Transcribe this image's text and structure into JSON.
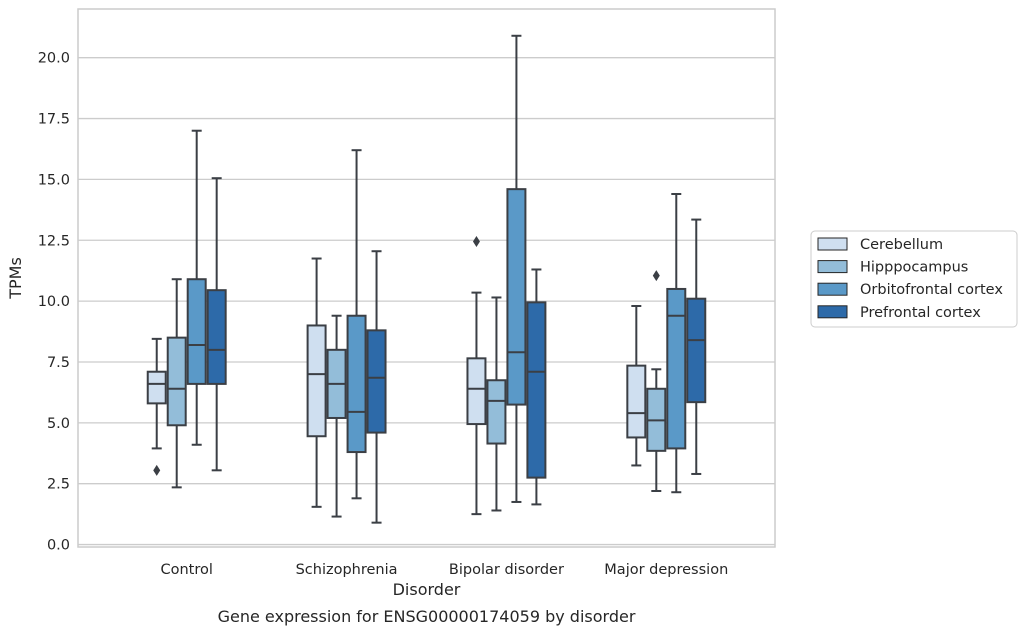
{
  "caption": "Gene expression for ENSG00000174059 by disorder",
  "chart_data": {
    "type": "box",
    "xlabel": "Disorder",
    "ylabel": "TPMs",
    "ylim": [
      -0.1,
      22.0
    ],
    "yticks": [
      0.0,
      2.5,
      5.0,
      7.5,
      10.0,
      12.5,
      15.0,
      17.5,
      20.0
    ],
    "ytick_labels": [
      "0.0",
      "2.5",
      "5.0",
      "7.5",
      "10.0",
      "12.5",
      "15.0",
      "17.5",
      "20.0"
    ],
    "grid": "horizontal",
    "legend_position": "right",
    "categories": [
      "Control",
      "Schizophrenia",
      "Bipolar disorder",
      "Major depression"
    ],
    "series": [
      {
        "name": "Cerebellum",
        "color": "#cfdff0",
        "boxes": [
          {
            "whisker_low": 3.95,
            "q1": 5.8,
            "median": 6.6,
            "q3": 7.1,
            "whisker_high": 8.45,
            "outliers": [
              3.05
            ]
          },
          {
            "whisker_low": 1.55,
            "q1": 4.45,
            "median": 7.0,
            "q3": 9.0,
            "whisker_high": 11.75,
            "outliers": []
          },
          {
            "whisker_low": 1.25,
            "q1": 4.95,
            "median": 6.4,
            "q3": 7.65,
            "whisker_high": 10.35,
            "outliers": [
              12.45
            ]
          },
          {
            "whisker_low": 3.25,
            "q1": 4.4,
            "median": 5.4,
            "q3": 7.35,
            "whisker_high": 9.8,
            "outliers": []
          }
        ]
      },
      {
        "name": "Hipppocampus",
        "color": "#93bdd9",
        "boxes": [
          {
            "whisker_low": 2.35,
            "q1": 4.9,
            "median": 6.4,
            "q3": 8.5,
            "whisker_high": 10.9,
            "outliers": []
          },
          {
            "whisker_low": 1.15,
            "q1": 5.2,
            "median": 6.6,
            "q3": 8.0,
            "whisker_high": 9.4,
            "outliers": []
          },
          {
            "whisker_low": 1.4,
            "q1": 4.15,
            "median": 5.9,
            "q3": 6.75,
            "whisker_high": 10.15,
            "outliers": []
          },
          {
            "whisker_low": 2.2,
            "q1": 3.85,
            "median": 5.1,
            "q3": 6.4,
            "whisker_high": 7.2,
            "outliers": [
              11.05
            ]
          }
        ]
      },
      {
        "name": "Orbitofrontal cortex",
        "color": "#5a99c8",
        "boxes": [
          {
            "whisker_low": 4.1,
            "q1": 6.6,
            "median": 8.2,
            "q3": 10.9,
            "whisker_high": 17.0,
            "outliers": []
          },
          {
            "whisker_low": 1.9,
            "q1": 3.8,
            "median": 5.45,
            "q3": 9.4,
            "whisker_high": 16.2,
            "outliers": []
          },
          {
            "whisker_low": 1.75,
            "q1": 5.75,
            "median": 7.9,
            "q3": 14.6,
            "whisker_high": 20.9,
            "outliers": []
          },
          {
            "whisker_low": 2.15,
            "q1": 3.95,
            "median": 9.4,
            "q3": 10.5,
            "whisker_high": 14.4,
            "outliers": []
          }
        ]
      },
      {
        "name": "Prefrontal cortex",
        "color": "#2d6aa9",
        "boxes": [
          {
            "whisker_low": 3.05,
            "q1": 6.6,
            "median": 8.0,
            "q3": 10.45,
            "whisker_high": 15.05,
            "outliers": []
          },
          {
            "whisker_low": 0.9,
            "q1": 4.6,
            "median": 6.85,
            "q3": 8.8,
            "whisker_high": 12.05,
            "outliers": []
          },
          {
            "whisker_low": 1.65,
            "q1": 2.75,
            "median": 7.1,
            "q3": 9.95,
            "whisker_high": 11.3,
            "outliers": []
          },
          {
            "whisker_low": 2.9,
            "q1": 5.85,
            "median": 8.4,
            "q3": 10.1,
            "whisker_high": 13.35,
            "outliers": []
          }
        ]
      }
    ]
  }
}
